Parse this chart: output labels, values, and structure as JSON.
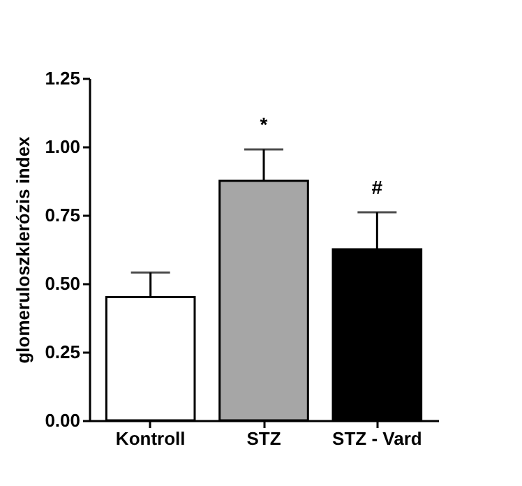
{
  "chart_data": {
    "type": "bar",
    "ylabel": "glomeruloszklerózis index",
    "categories": [
      "Kontroll",
      "STZ",
      "STZ - Vard"
    ],
    "values": [
      0.45,
      0.875,
      0.625
    ],
    "colors": [
      "#ffffff",
      "#a6a6a6",
      "#000000"
    ],
    "errors": [
      [
        0.45,
        0.54
      ],
      [
        0.875,
        0.99
      ],
      [
        0.625,
        0.76
      ]
    ],
    "ylim": [
      0,
      1.25
    ],
    "yticks": [
      {
        "value": 0,
        "label": "0.00"
      },
      {
        "value": 0.25,
        "label": "0.25"
      },
      {
        "value": 0.5,
        "label": "0.50"
      },
      {
        "value": 0.75,
        "label": "0.75"
      },
      {
        "value": 1,
        "label": "1.00"
      },
      {
        "value": 1.25,
        "label": "1.25"
      }
    ],
    "annotations": [
      "*",
      "#"
    ],
    "grid": false
  }
}
